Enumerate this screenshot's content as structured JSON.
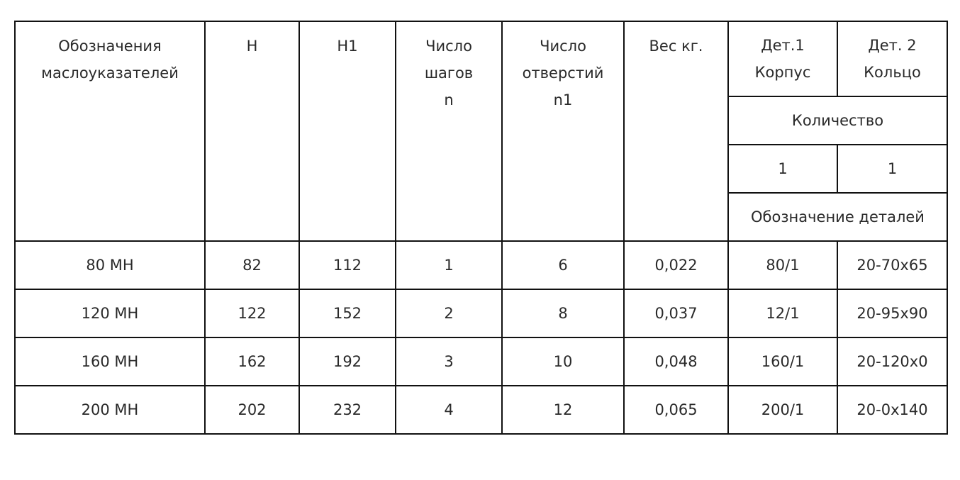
{
  "table": {
    "headers": {
      "designation": "Обозначения маслоуказателей",
      "h": "H",
      "h1": "H1",
      "steps": "Число шагов n",
      "holes": "Число отверстий n1",
      "weight": "Вес кг.",
      "part1": "Дет.1 Корпус",
      "part2": "Дет. 2 Кольцо",
      "quantity": "Количество",
      "qty1": "1",
      "qty2": "1",
      "part_designation": "Обозначение деталей"
    },
    "rows": [
      [
        "80 МН",
        "82",
        "112",
        "1",
        "6",
        "0,022",
        "80/1",
        "20-70x65"
      ],
      [
        "120 МН",
        "122",
        "152",
        "2",
        "8",
        "0,037",
        "12/1",
        "20-95x90"
      ],
      [
        "160 МН",
        "162",
        "192",
        "3",
        "10",
        "0,048",
        "160/1",
        "20-120x0"
      ],
      [
        "200 МН",
        "202",
        "232",
        "4",
        "12",
        "0,065",
        "200/1",
        "20-0x140"
      ]
    ]
  }
}
